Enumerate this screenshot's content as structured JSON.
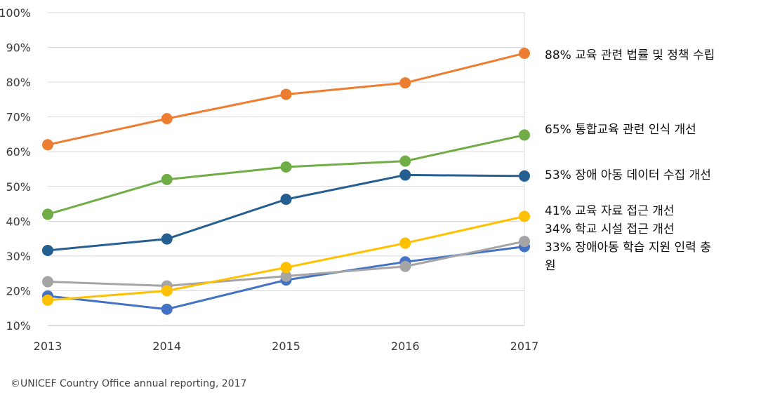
{
  "chart_data": {
    "type": "line",
    "title": "",
    "xlabel": "",
    "ylabel": "",
    "x": [
      "2013",
      "2014",
      "2015",
      "2016",
      "2017"
    ],
    "ylim": [
      0.1,
      1.0
    ],
    "yticks": [
      "10%",
      "20%",
      "30%",
      "40%",
      "50%",
      "60%",
      "70%",
      "80%",
      "90%",
      "100%"
    ],
    "grid": true,
    "series": [
      {
        "name": "88% 교육 관련 법률 및 정책 수립",
        "color": "#ED7D31",
        "values": [
          0.62,
          0.695,
          0.765,
          0.798,
          0.883
        ]
      },
      {
        "name": "65% 통합교육 관련 인식 개선",
        "color": "#70AD47",
        "values": [
          0.42,
          0.52,
          0.556,
          0.573,
          0.648
        ]
      },
      {
        "name": "53% 장애 아동 데이터 수집 개선",
        "color": "#255E91",
        "values": [
          0.316,
          0.349,
          0.463,
          0.533,
          0.53
        ]
      },
      {
        "name": "41% 교육 자료 접근 개선",
        "color": "#FFC000",
        "values": [
          0.173,
          0.2,
          0.267,
          0.337,
          0.414
        ]
      },
      {
        "name": "34% 학교 시설 접근 개선",
        "color": "#A5A5A5",
        "values": [
          0.226,
          0.214,
          0.242,
          0.27,
          0.342
        ]
      },
      {
        "name": "33% 장애아동 학습 지원 인력 충원",
        "color": "#4472C4",
        "values": [
          0.185,
          0.147,
          0.231,
          0.283,
          0.327
        ]
      }
    ]
  },
  "labels": {
    "orange": "88% 교육 관련 법률 및 정책 수립",
    "green": "65% 통합교육 관련 인식 개선",
    "darkblue": "53% 장애 아동 데이터 수집 개선",
    "yellow": "41% 교육 자료 접근 개선",
    "gray": "34% 학교 시설 접근 개선",
    "blue_line1": "33% 장애아동 학습 지원 인력 충",
    "blue_line2": "원"
  },
  "credit": "©UNICEF Country Office annual reporting, 2017"
}
